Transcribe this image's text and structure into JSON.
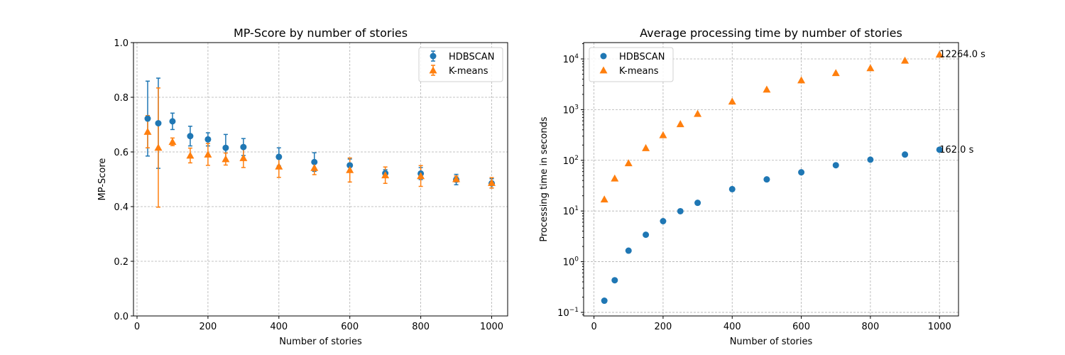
{
  "chart_data": [
    {
      "type": "scatter",
      "title": "MP-Score by number of stories",
      "xlabel": "Number of stories",
      "ylabel": "MP-Score",
      "xlim": [
        -10,
        1045
      ],
      "ylim": [
        0,
        1.0
      ],
      "yscale": "linear",
      "grid": true,
      "legend_position": "top-right",
      "xticks": [
        0,
        200,
        400,
        600,
        800,
        1000
      ],
      "xtick_labels": [
        "0",
        "200",
        "400",
        "600",
        "800",
        "1000"
      ],
      "yticks": [
        0,
        0.2,
        0.4,
        0.6,
        0.8,
        1.0
      ],
      "ytick_labels": [
        "0.0",
        "0.2",
        "0.4",
        "0.6",
        "0.8",
        "1.0"
      ],
      "error_bars": true,
      "series": [
        {
          "name": "HDBSCAN",
          "marker": "circle",
          "color": "#1f77b4",
          "x": [
            30,
            60,
            100,
            150,
            200,
            250,
            300,
            400,
            500,
            600,
            700,
            800,
            900,
            1000
          ],
          "y": [
            0.722,
            0.705,
            0.712,
            0.658,
            0.646,
            0.615,
            0.618,
            0.582,
            0.563,
            0.551,
            0.522,
            0.521,
            0.499,
            0.485
          ],
          "err": [
            0.137,
            0.165,
            0.03,
            0.036,
            0.024,
            0.049,
            0.031,
            0.033,
            0.034,
            0.023,
            0.013,
            0.022,
            0.019,
            0.017
          ]
        },
        {
          "name": "K-means",
          "marker": "triangle",
          "color": "#ff7f0e",
          "x": [
            30,
            60,
            100,
            150,
            200,
            250,
            300,
            400,
            500,
            600,
            700,
            800,
            900,
            1000
          ],
          "y": [
            0.674,
            0.616,
            0.637,
            0.587,
            0.591,
            0.574,
            0.578,
            0.547,
            0.542,
            0.534,
            0.515,
            0.512,
            0.501,
            0.487
          ],
          "err": [
            0.059,
            0.218,
            0.014,
            0.027,
            0.04,
            0.022,
            0.035,
            0.04,
            0.025,
            0.044,
            0.03,
            0.038,
            0.011,
            0.019
          ]
        }
      ]
    },
    {
      "type": "scatter",
      "title": "Average processing time by number of stories",
      "xlabel": "Number of stories",
      "ylabel": "Processing time in seconds",
      "xlim": [
        -30,
        1055
      ],
      "ylim": [
        0.085,
        21000
      ],
      "yscale": "log",
      "grid": true,
      "legend_position": "top-left",
      "xticks": [
        0,
        200,
        400,
        600,
        800,
        1000
      ],
      "xtick_labels": [
        "0",
        "200",
        "400",
        "600",
        "800",
        "1000"
      ],
      "yticks": [
        0.1,
        1,
        10,
        100,
        1000,
        10000
      ],
      "ytick_mantissa": "10",
      "ytick_exponents": [
        "−1",
        "0",
        "1",
        "2",
        "3",
        "4"
      ],
      "series": [
        {
          "name": "HDBSCAN",
          "marker": "circle",
          "color": "#1f77b4",
          "x": [
            30,
            60,
            100,
            150,
            200,
            250,
            300,
            400,
            500,
            600,
            700,
            800,
            900,
            1000
          ],
          "y": [
            0.17,
            0.43,
            1.65,
            3.4,
            6.3,
            9.9,
            14.5,
            27,
            42,
            58,
            80,
            103,
            130,
            162.0
          ]
        },
        {
          "name": "K-means",
          "marker": "triangle",
          "color": "#ff7f0e",
          "x": [
            30,
            60,
            100,
            150,
            200,
            250,
            300,
            400,
            500,
            600,
            700,
            800,
            900,
            1000
          ],
          "y": [
            17,
            44,
            88,
            175,
            315,
            520,
            830,
            1450,
            2500,
            3800,
            5300,
            6600,
            9300,
            12264.0
          ]
        }
      ],
      "annotations": [
        {
          "text": "12264.0 s",
          "x": 1000,
          "y": 12264.0
        },
        {
          "text": "162.0 s",
          "x": 1000,
          "y": 162.0
        }
      ]
    }
  ]
}
